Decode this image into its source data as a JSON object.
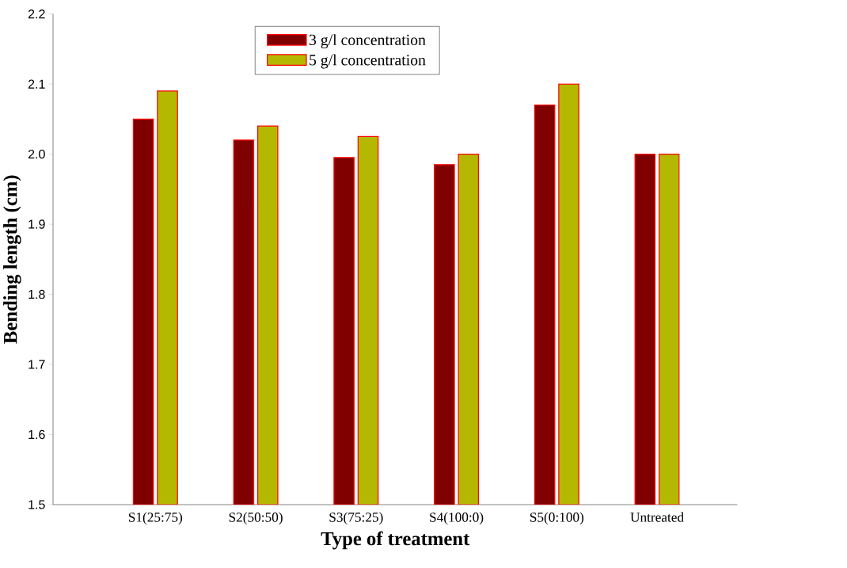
{
  "chart_data": {
    "type": "bar",
    "xlabel": "Type of treatment",
    "ylabel": "Bending length (cm)",
    "categories": [
      "S1(25:75)",
      "S2(50:50)",
      "S3(75:25)",
      "S4(100:0)",
      "S5(0:100)",
      "Untreated"
    ],
    "series": [
      {
        "name": "3 g/l concentration",
        "color": "#800000",
        "values": [
          2.05,
          2.02,
          1.995,
          1.985,
          2.07,
          2.0
        ]
      },
      {
        "name": "5 g/l concentration",
        "color": "#b5b800",
        "values": [
          2.09,
          2.04,
          2.025,
          2.0,
          2.1,
          2.0
        ]
      }
    ],
    "ylim": [
      1.5,
      2.2
    ],
    "yticks": [
      1.5,
      1.6,
      1.7,
      1.8,
      1.9,
      {
        "value": 2.0,
        "label": "2.0"
      },
      2.1,
      2.2
    ],
    "legend": "top"
  }
}
